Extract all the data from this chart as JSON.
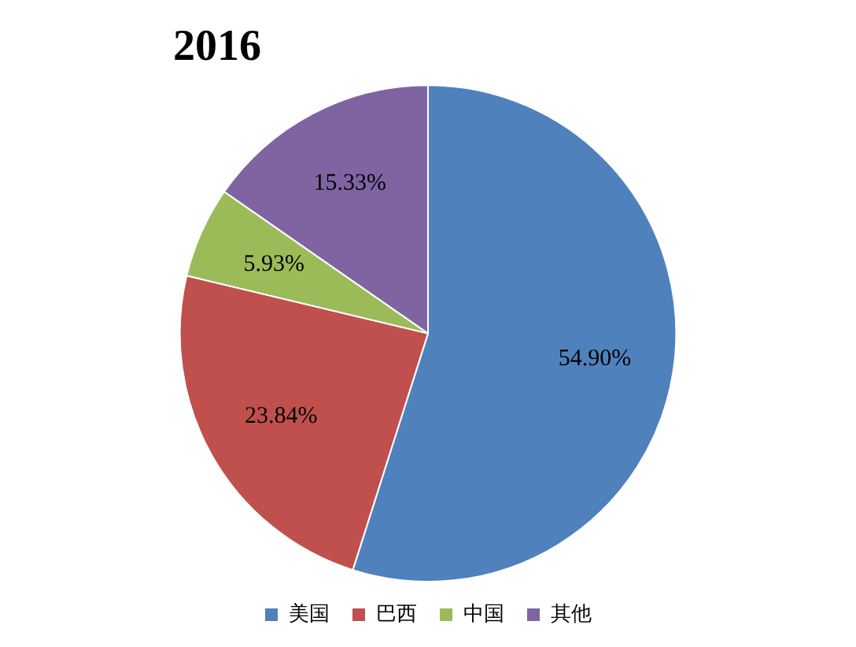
{
  "chart_data": {
    "type": "pie",
    "title": "2016",
    "categories": [
      "美国",
      "巴西",
      "中国",
      "其他"
    ],
    "values": [
      54.9,
      23.84,
      5.93,
      15.33
    ],
    "value_labels": [
      "54.90%",
      "23.84%",
      "5.93%",
      "15.33%"
    ],
    "colors": [
      "#4f81bd",
      "#c0504d",
      "#9bbb59",
      "#8064a2"
    ],
    "legend": "bottom"
  }
}
